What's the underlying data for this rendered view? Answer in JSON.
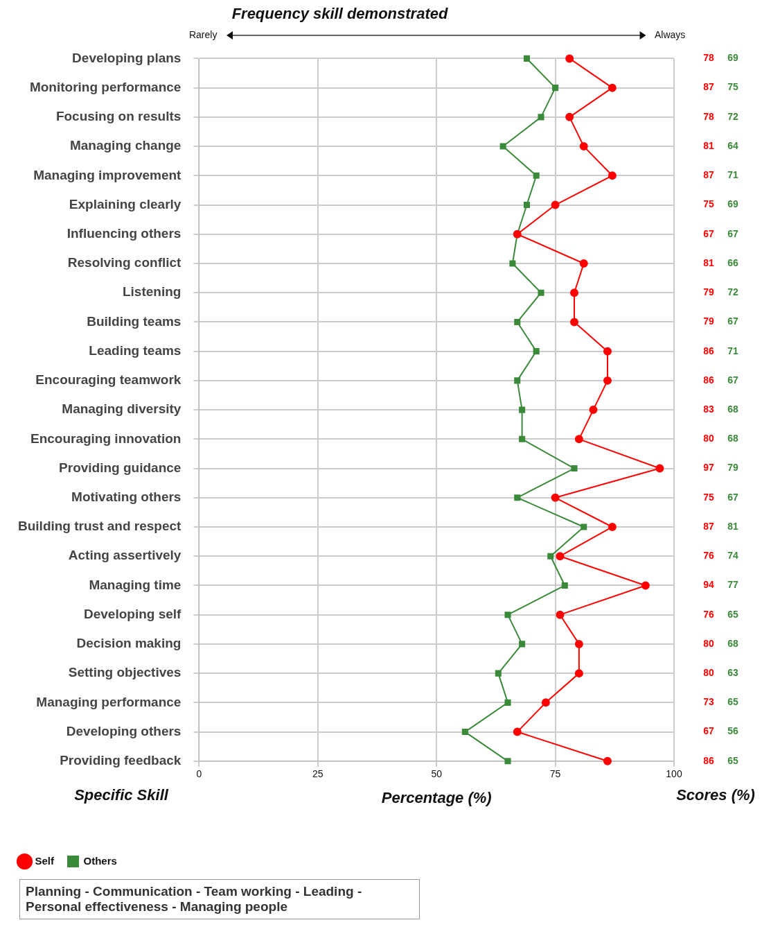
{
  "chart_data": {
    "type": "line",
    "orientation": "horizontal",
    "title": "Frequency skill demonstrated",
    "xlabel": "Percentage (%)",
    "ylabel": "Specific Skill",
    "categories": [
      "Developing plans",
      "Monitoring performance",
      "Focusing on results",
      "Managing change",
      "Managing improvement",
      "Explaining clearly",
      "Influencing others",
      "Resolving conflict",
      "Listening",
      "Building teams",
      "Leading teams",
      "Encouraging teamwork",
      "Managing diversity",
      "Encouraging innovation",
      "Providing guidance",
      "Motivating others",
      "Building trust and respect",
      "Acting assertively",
      "Managing time",
      "Developing self",
      "Decision making",
      "Setting objectives",
      "Managing performance",
      "Developing others",
      "Providing feedback"
    ],
    "series": [
      {
        "name": "Self",
        "color": "#ff0000",
        "marker": "circle",
        "values": [
          78,
          87,
          78,
          81,
          87,
          75,
          67,
          81,
          79,
          79,
          86,
          86,
          83,
          80,
          97,
          75,
          87,
          76,
          94,
          76,
          80,
          80,
          73,
          67,
          86
        ]
      },
      {
        "name": "Others",
        "color": "#3a8a3a",
        "marker": "square",
        "values": [
          69,
          75,
          72,
          64,
          71,
          69,
          67,
          66,
          72,
          67,
          71,
          67,
          68,
          68,
          79,
          67,
          81,
          74,
          77,
          65,
          68,
          63,
          65,
          56,
          65
        ]
      }
    ],
    "xlim": [
      0,
      100
    ],
    "xticks": [
      0,
      25,
      50,
      75,
      100
    ],
    "grid": true,
    "legend": "bottom left",
    "data_labels": true,
    "annotations": [
      "Rarely",
      "Always",
      "Scores (%)",
      "Planning - Communication - Team working - Leading - Personal effectiveness - Managing people"
    ]
  }
}
